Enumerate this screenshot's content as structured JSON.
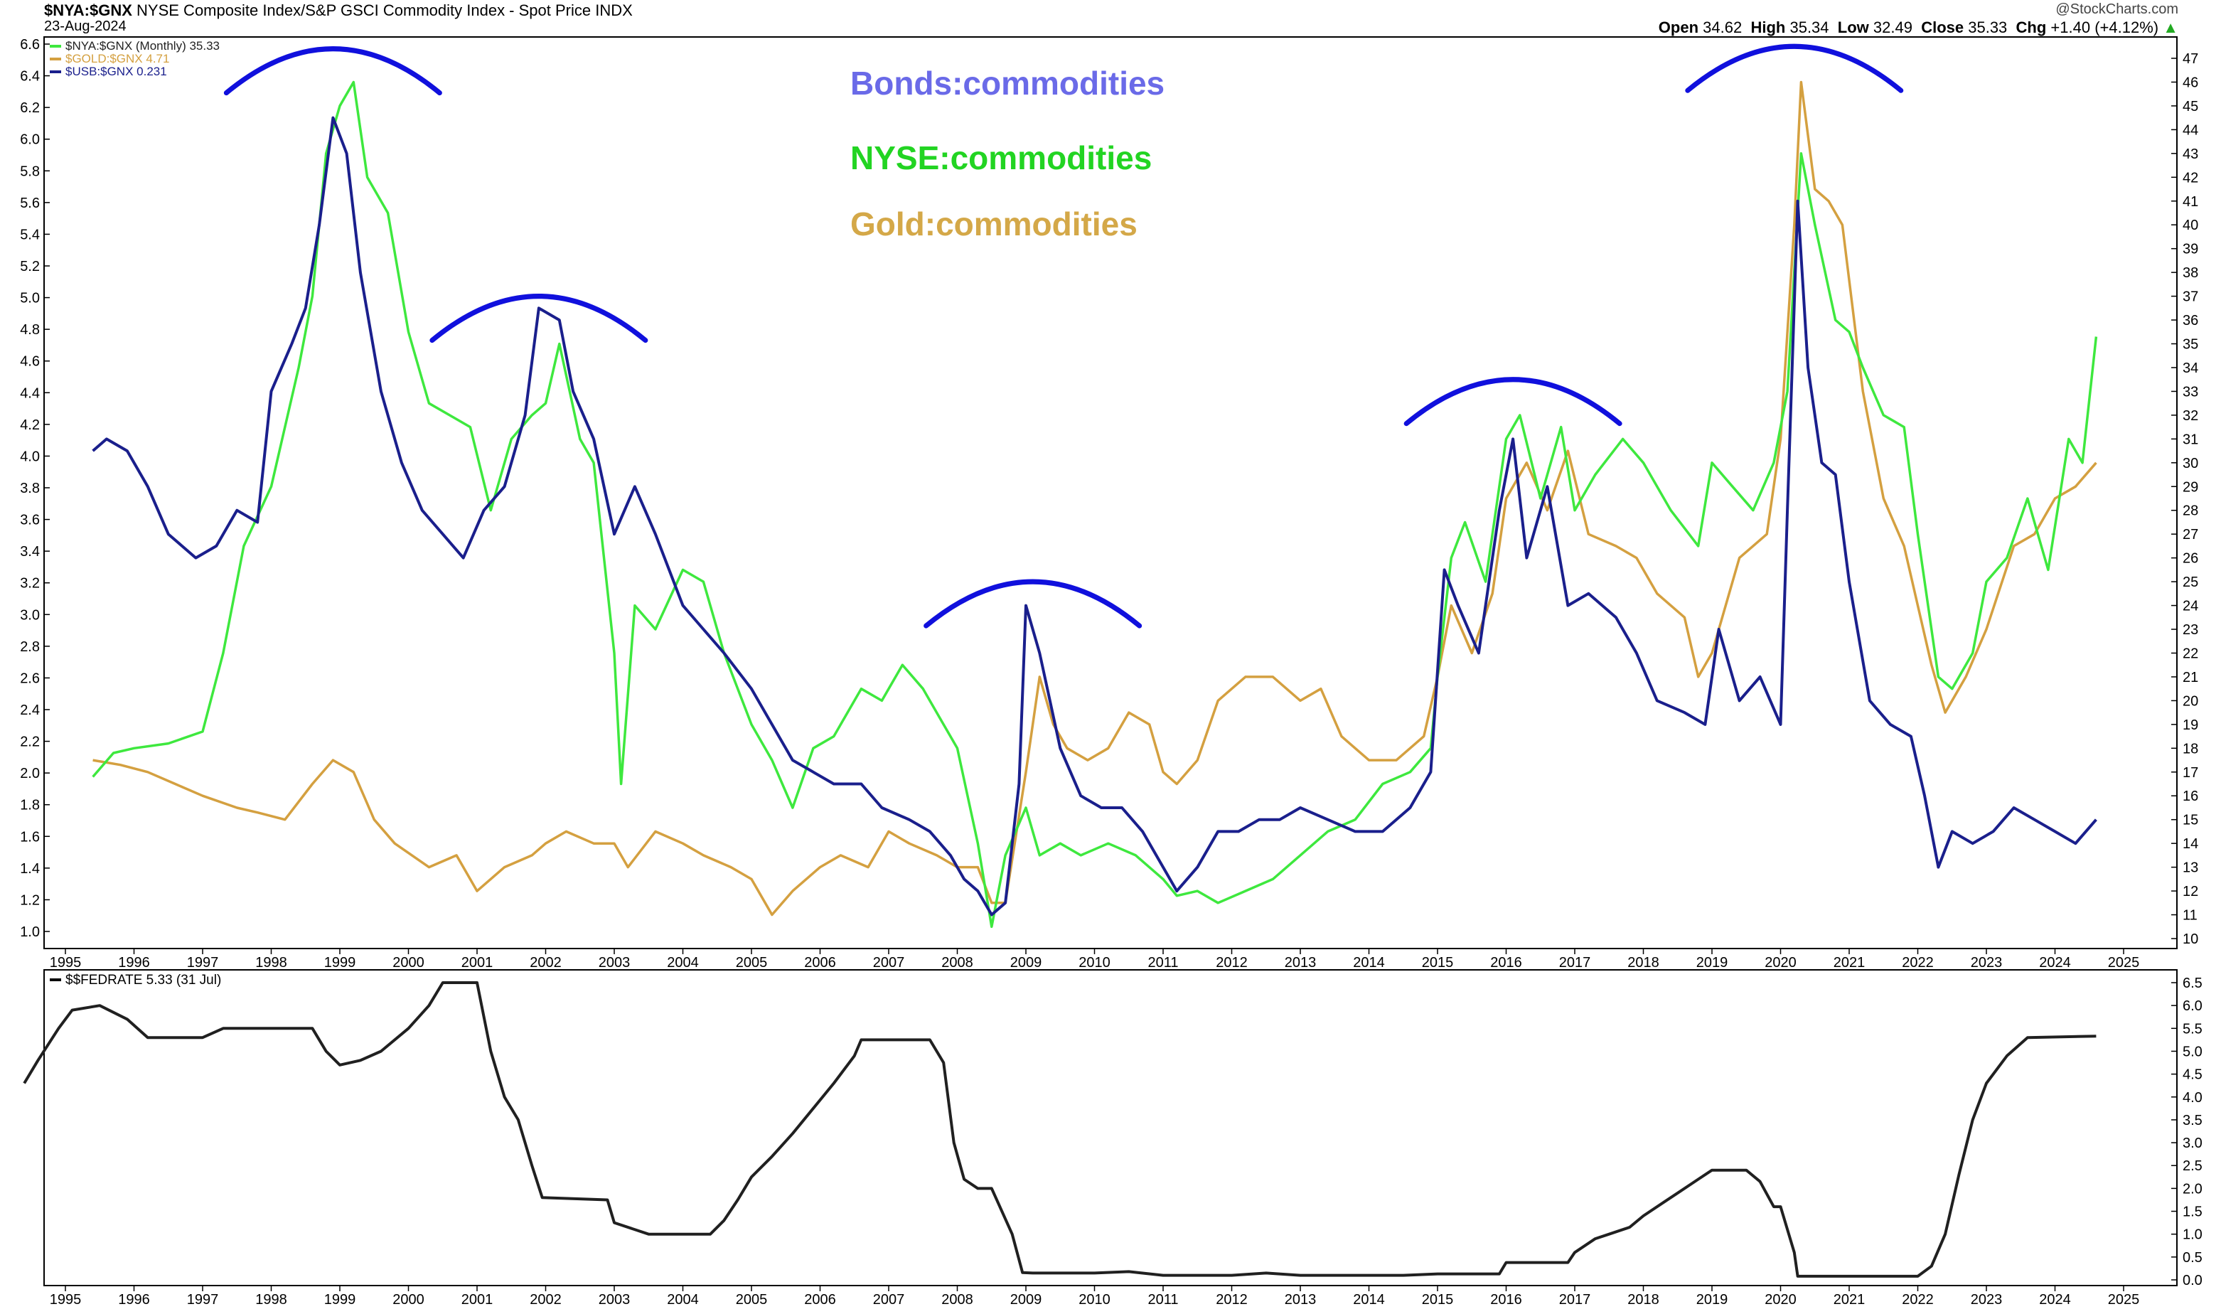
{
  "header": {
    "symbol": "$NYA:$GNX",
    "description": "NYSE Composite Index/S&P GSCI Commodity Index - Spot Price",
    "exchange": "INDX",
    "date": "23-Aug-2024",
    "watermark": "@StockCharts.com",
    "open_label": "Open",
    "open": "34.62",
    "high_label": "High",
    "high": "35.34",
    "low_label": "Low",
    "low": "32.49",
    "close_label": "Close",
    "close": "35.33",
    "chg_label": "Chg",
    "chg": "+1.40 (+4.12%)"
  },
  "annotations": {
    "bonds": "Bonds:commodities",
    "nyse": "NYSE:commodities",
    "gold": "Gold:commodities"
  },
  "colors": {
    "nya": "#3ee83e",
    "gold": "#d4a040",
    "usb": "#1a1f8c",
    "fedrate": "#202020",
    "arc": "#1010dd",
    "bonds_text": "#6a6ae8",
    "nyse_text": "#22d422",
    "gold_text": "#d4a848"
  },
  "chart_data": [
    {
      "type": "line",
      "legend": [
        "$NYA:$GNX (Monthly) 35.33",
        "$GOLD:$GNX 4.71",
        "$USB:$GNX 0.231"
      ],
      "x_ticks": [
        "1995",
        "1996",
        "1997",
        "1998",
        "1999",
        "2000",
        "2001",
        "2002",
        "2003",
        "2004",
        "2005",
        "2006",
        "2007",
        "2008",
        "2009",
        "2010",
        "2011",
        "2012",
        "2013",
        "2014",
        "2015",
        "2016",
        "2017",
        "2018",
        "2019",
        "2020",
        "2021",
        "2022",
        "2023",
        "2024",
        "2025"
      ],
      "left_axis": {
        "range": [
          1.0,
          6.6
        ],
        "ticks": [
          "1.0",
          "1.2",
          "1.4",
          "1.6",
          "1.8",
          "2.0",
          "2.2",
          "2.4",
          "2.6",
          "2.8",
          "3.0",
          "3.2",
          "3.4",
          "3.6",
          "3.8",
          "4.0",
          "4.2",
          "4.4",
          "4.6",
          "4.8",
          "5.0",
          "5.2",
          "5.4",
          "5.6",
          "5.8",
          "6.0",
          "6.2",
          "6.4",
          "6.6"
        ]
      },
      "right_axis": {
        "range": [
          10,
          47
        ],
        "ticks": [
          "10",
          "11",
          "12",
          "13",
          "14",
          "15",
          "16",
          "17",
          "18",
          "19",
          "20",
          "21",
          "22",
          "23",
          "24",
          "25",
          "26",
          "27",
          "28",
          "29",
          "30",
          "31",
          "32",
          "33",
          "34",
          "35",
          "36",
          "37",
          "38",
          "39",
          "40",
          "41",
          "42",
          "43",
          "44",
          "45",
          "46",
          "47"
        ]
      },
      "series": [
        {
          "name": "$NYA:$GNX (Monthly) 35.33",
          "axis": "right",
          "x": [
            1995.4,
            1995.7,
            1996.0,
            1996.5,
            1997.0,
            1997.3,
            1997.6,
            1998.0,
            1998.4,
            1998.6,
            1998.8,
            1999.0,
            1999.2,
            1999.4,
            1999.7,
            2000.0,
            2000.3,
            2000.6,
            2000.9,
            2001.2,
            2001.5,
            2001.8,
            2002.0,
            2002.2,
            2002.5,
            2002.7,
            2003.0,
            2003.1,
            2003.3,
            2003.6,
            2004.0,
            2004.3,
            2004.6,
            2005.0,
            2005.3,
            2005.6,
            2005.9,
            2006.2,
            2006.6,
            2006.9,
            2007.2,
            2007.5,
            2007.8,
            2008.0,
            2008.3,
            2008.5,
            2008.7,
            2009.0,
            2009.2,
            2009.5,
            2009.8,
            2010.2,
            2010.6,
            2011.0,
            2011.2,
            2011.5,
            2011.8,
            2012.2,
            2012.6,
            2013.0,
            2013.4,
            2013.8,
            2014.2,
            2014.6,
            2014.9,
            2015.0,
            2015.2,
            2015.4,
            2015.7,
            2016.0,
            2016.2,
            2016.5,
            2016.8,
            2017.0,
            2017.3,
            2017.7,
            2018.0,
            2018.4,
            2018.8,
            2019.0,
            2019.3,
            2019.6,
            2019.9,
            2020.1,
            2020.3,
            2020.5,
            2020.8,
            2021.0,
            2021.2,
            2021.5,
            2021.8,
            2022.0,
            2022.3,
            2022.5,
            2022.8,
            2023.0,
            2023.3,
            2023.6,
            2023.9,
            2024.2,
            2024.4,
            2024.6
          ],
          "y": [
            16.8,
            17.8,
            18.0,
            18.2,
            18.7,
            22,
            26.5,
            29,
            34.0,
            37,
            43.0,
            45.0,
            46.0,
            42.0,
            40.5,
            35.5,
            32.5,
            32.0,
            31.5,
            28.0,
            31.0,
            32.0,
            32.5,
            35.0,
            31.0,
            30.0,
            22.0,
            16.5,
            24.0,
            23.0,
            25.5,
            25.0,
            22.0,
            19.0,
            17.5,
            15.5,
            18.0,
            18.5,
            20.5,
            20.0,
            21.5,
            20.5,
            19.0,
            18.0,
            14.0,
            10.5,
            13.5,
            15.5,
            13.5,
            14.0,
            13.5,
            14.0,
            13.5,
            12.5,
            11.8,
            12.0,
            11.5,
            12.0,
            12.5,
            13.5,
            14.5,
            15.0,
            16.5,
            17.0,
            18.0,
            21.0,
            26.0,
            27.5,
            25.0,
            31.0,
            32.0,
            28.5,
            31.5,
            28.0,
            29.5,
            31.0,
            30.0,
            28.0,
            26.5,
            30.0,
            29.0,
            28.0,
            30.0,
            33.0,
            43.0,
            40.0,
            36.0,
            35.5,
            34.0,
            32.0,
            31.5,
            27.0,
            21.0,
            20.5,
            22.0,
            25.0,
            26.0,
            28.5,
            25.5,
            31.0,
            30.0,
            35.3
          ]
        },
        {
          "name": "$GOLD:$GNX 4.71",
          "axis": "right",
          "x": [
            1995.4,
            1995.8,
            1996.2,
            1996.6,
            1997.0,
            1997.5,
            1997.8,
            1998.2,
            1998.6,
            1998.9,
            1999.2,
            1999.5,
            1999.8,
            2000.3,
            2000.7,
            2001.0,
            2001.4,
            2001.8,
            2002.0,
            2002.3,
            2002.7,
            2003.0,
            2003.2,
            2003.6,
            2004.0,
            2004.3,
            2004.7,
            2005.0,
            2005.3,
            2005.6,
            2006.0,
            2006.3,
            2006.7,
            2007.0,
            2007.3,
            2007.7,
            2008.0,
            2008.3,
            2008.5,
            2008.7,
            2009.0,
            2009.2,
            2009.4,
            2009.6,
            2009.9,
            2010.2,
            2010.5,
            2010.8,
            2011.0,
            2011.2,
            2011.5,
            2011.8,
            2012.2,
            2012.6,
            2013.0,
            2013.3,
            2013.6,
            2014.0,
            2014.4,
            2014.8,
            2015.0,
            2015.2,
            2015.5,
            2015.8,
            2016.0,
            2016.3,
            2016.6,
            2016.9,
            2017.2,
            2017.6,
            2017.9,
            2018.2,
            2018.6,
            2018.8,
            2019.0,
            2019.4,
            2019.8,
            2020.0,
            2020.2,
            2020.3,
            2020.5,
            2020.7,
            2020.9,
            2021.2,
            2021.5,
            2021.8,
            2022.0,
            2022.2,
            2022.4,
            2022.7,
            2023.0,
            2023.4,
            2023.7,
            2024.0,
            2024.3,
            2024.6
          ],
          "y": [
            17.5,
            17.3,
            17.0,
            16.5,
            16.0,
            15.5,
            15.3,
            15.0,
            16.5,
            17.5,
            17.0,
            15.0,
            14.0,
            13.0,
            13.5,
            12.0,
            13.0,
            13.5,
            14.0,
            14.5,
            14.0,
            14.0,
            13.0,
            14.5,
            14.0,
            13.5,
            13.0,
            12.5,
            11.0,
            12.0,
            13.0,
            13.5,
            13.0,
            14.5,
            14.0,
            13.5,
            13.0,
            13.0,
            11.5,
            11.5,
            17.0,
            21.0,
            19.0,
            18.0,
            17.5,
            18.0,
            19.5,
            19.0,
            17.0,
            16.5,
            17.5,
            20.0,
            21.0,
            21.0,
            20.0,
            20.5,
            18.5,
            17.5,
            17.5,
            18.5,
            21.0,
            24.0,
            22.0,
            24.5,
            28.5,
            30.0,
            28.0,
            30.5,
            27.0,
            26.5,
            26.0,
            24.5,
            23.5,
            21.0,
            22.0,
            26.0,
            27.0,
            31.0,
            40.0,
            46.0,
            41.5,
            41.0,
            40.0,
            33.0,
            28.5,
            26.5,
            24.0,
            21.5,
            19.5,
            21.0,
            23.0,
            26.5,
            27.0,
            28.5,
            29.0,
            30.0
          ]
        },
        {
          "name": "$USB:$GNX 0.231",
          "axis": "right",
          "x": [
            1995.4,
            1995.6,
            1995.9,
            1996.2,
            1996.5,
            1996.9,
            1997.2,
            1997.5,
            1997.8,
            1998.0,
            1998.3,
            1998.5,
            1998.7,
            1998.9,
            1999.1,
            1999.3,
            1999.6,
            1999.9,
            2000.2,
            2000.5,
            2000.8,
            2001.1,
            2001.4,
            2001.7,
            2001.9,
            2002.2,
            2002.4,
            2002.7,
            2003.0,
            2003.3,
            2003.6,
            2004.0,
            2004.3,
            2004.6,
            2005.0,
            2005.3,
            2005.6,
            2005.9,
            2006.2,
            2006.6,
            2006.9,
            2007.3,
            2007.6,
            2007.9,
            2008.1,
            2008.3,
            2008.5,
            2008.7,
            2008.9,
            2009.0,
            2009.2,
            2009.5,
            2009.8,
            2010.1,
            2010.4,
            2010.7,
            2011.0,
            2011.2,
            2011.5,
            2011.8,
            2012.1,
            2012.4,
            2012.7,
            2013.0,
            2013.4,
            2013.8,
            2014.2,
            2014.6,
            2014.9,
            2015.1,
            2015.3,
            2015.6,
            2015.9,
            2016.1,
            2016.3,
            2016.6,
            2016.9,
            2017.2,
            2017.6,
            2017.9,
            2018.2,
            2018.6,
            2018.9,
            2019.1,
            2019.4,
            2019.7,
            2020.0,
            2020.1,
            2020.25,
            2020.4,
            2020.6,
            2020.8,
            2021.0,
            2021.3,
            2021.6,
            2021.9,
            2022.1,
            2022.3,
            2022.5,
            2022.8,
            2023.1,
            2023.4,
            2023.7,
            2024.0,
            2024.3,
            2024.6
          ],
          "y": [
            30.5,
            31.0,
            30.5,
            29.0,
            27.0,
            26.0,
            26.5,
            28.0,
            27.5,
            33.0,
            35.0,
            36.5,
            40.0,
            44.5,
            43.0,
            38.0,
            33.0,
            30.0,
            28.0,
            27.0,
            26.0,
            28.0,
            29.0,
            32.0,
            36.5,
            36.0,
            33.0,
            31.0,
            27.0,
            29.0,
            27.0,
            24.0,
            23.0,
            22.0,
            20.5,
            19.0,
            17.5,
            17.0,
            16.5,
            16.5,
            15.5,
            15.0,
            14.5,
            13.5,
            12.5,
            12.0,
            11.0,
            11.5,
            16.5,
            24.0,
            22.0,
            18.0,
            16.0,
            15.5,
            15.5,
            14.5,
            13.0,
            12.0,
            13.0,
            14.5,
            14.5,
            15.0,
            15.0,
            15.5,
            15.0,
            14.5,
            14.5,
            15.5,
            17.0,
            25.5,
            24.0,
            22.0,
            28.0,
            31.0,
            26.0,
            29.0,
            24.0,
            24.5,
            23.5,
            22.0,
            20.0,
            19.5,
            19.0,
            23.0,
            20.0,
            21.0,
            19.0,
            28.0,
            41.0,
            34.0,
            30.0,
            29.5,
            25.0,
            20.0,
            19.0,
            18.5,
            16.0,
            13.0,
            14.5,
            14.0,
            14.5,
            15.5,
            15.0,
            14.5,
            14.0,
            15.0
          ]
        }
      ],
      "arcs": [
        {
          "center_year": 1998.9,
          "peak": 47.4
        },
        {
          "center_year": 2001.9,
          "peak": 37.0
        },
        {
          "center_year": 2009.1,
          "peak": 25.0
        },
        {
          "center_year": 2016.1,
          "peak": 33.5
        },
        {
          "center_year": 2020.2,
          "peak": 47.5
        }
      ]
    },
    {
      "type": "line",
      "legend": [
        "$$FEDRATE 5.33 (31 Jul)"
      ],
      "y_axis": {
        "range": [
          0.0,
          6.5
        ],
        "ticks": [
          "0.0",
          "0.5",
          "1.0",
          "1.5",
          "2.0",
          "2.5",
          "3.0",
          "3.5",
          "4.0",
          "4.5",
          "5.0",
          "5.5",
          "6.0",
          "6.5"
        ]
      },
      "x_ticks": [
        "1995",
        "1996",
        "1997",
        "1998",
        "1999",
        "2000",
        "2001",
        "2002",
        "2003",
        "2004",
        "2005",
        "2006",
        "2007",
        "2008",
        "2009",
        "2010",
        "2011",
        "2012",
        "2013",
        "2014",
        "2015",
        "2016",
        "2017",
        "2018",
        "2019",
        "2020",
        "2021",
        "2022",
        "2023",
        "2024",
        "2025"
      ],
      "series": [
        {
          "name": "$$FEDRATE 5.33 (31 Jul)",
          "x": [
            1994.4,
            1994.6,
            1994.9,
            1995.1,
            1995.5,
            1995.9,
            1996.2,
            1996.6,
            1997.0,
            1997.3,
            1997.6,
            1998.0,
            1998.6,
            1998.8,
            1999.0,
            1999.3,
            1999.6,
            2000.0,
            2000.3,
            2000.5,
            2001.0,
            2001.2,
            2001.4,
            2001.6,
            2001.8,
            2001.95,
            2002.9,
            2003.0,
            2003.5,
            2004.4,
            2004.6,
            2004.8,
            2005.0,
            2005.3,
            2005.6,
            2005.9,
            2006.2,
            2006.5,
            2006.6,
            2007.6,
            2007.8,
            2007.95,
            2008.1,
            2008.3,
            2008.5,
            2008.8,
            2008.95,
            2009.1,
            2010.0,
            2010.5,
            2011.0,
            2011.5,
            2012.0,
            2012.5,
            2013.0,
            2013.5,
            2014.0,
            2014.5,
            2015.0,
            2015.9,
            2016.0,
            2016.9,
            2017.0,
            2017.3,
            2017.5,
            2017.8,
            2018.0,
            2018.3,
            2018.5,
            2018.8,
            2019.0,
            2019.5,
            2019.7,
            2019.9,
            2020.0,
            2020.2,
            2020.25,
            2021.0,
            2022.0,
            2022.2,
            2022.4,
            2022.6,
            2022.8,
            2023.0,
            2023.3,
            2023.6,
            2024.6
          ],
          "y": [
            4.3,
            4.8,
            5.5,
            5.9,
            6.0,
            5.7,
            5.3,
            5.3,
            5.3,
            5.5,
            5.5,
            5.5,
            5.5,
            5.0,
            4.7,
            4.8,
            5.0,
            5.5,
            6.0,
            6.5,
            6.5,
            5.0,
            4.0,
            3.5,
            2.5,
            1.8,
            1.75,
            1.25,
            1.0,
            1.0,
            1.3,
            1.75,
            2.25,
            2.7,
            3.2,
            3.75,
            4.3,
            4.9,
            5.25,
            5.25,
            4.75,
            3.0,
            2.2,
            2.0,
            2.0,
            1.0,
            0.16,
            0.15,
            0.15,
            0.18,
            0.1,
            0.1,
            0.1,
            0.15,
            0.1,
            0.1,
            0.1,
            0.1,
            0.13,
            0.13,
            0.38,
            0.38,
            0.6,
            0.9,
            1.0,
            1.15,
            1.4,
            1.7,
            1.9,
            2.2,
            2.4,
            2.4,
            2.15,
            1.6,
            1.6,
            0.6,
            0.08,
            0.08,
            0.08,
            0.3,
            1.0,
            2.3,
            3.5,
            4.3,
            4.9,
            5.3,
            5.33
          ]
        }
      ]
    }
  ]
}
